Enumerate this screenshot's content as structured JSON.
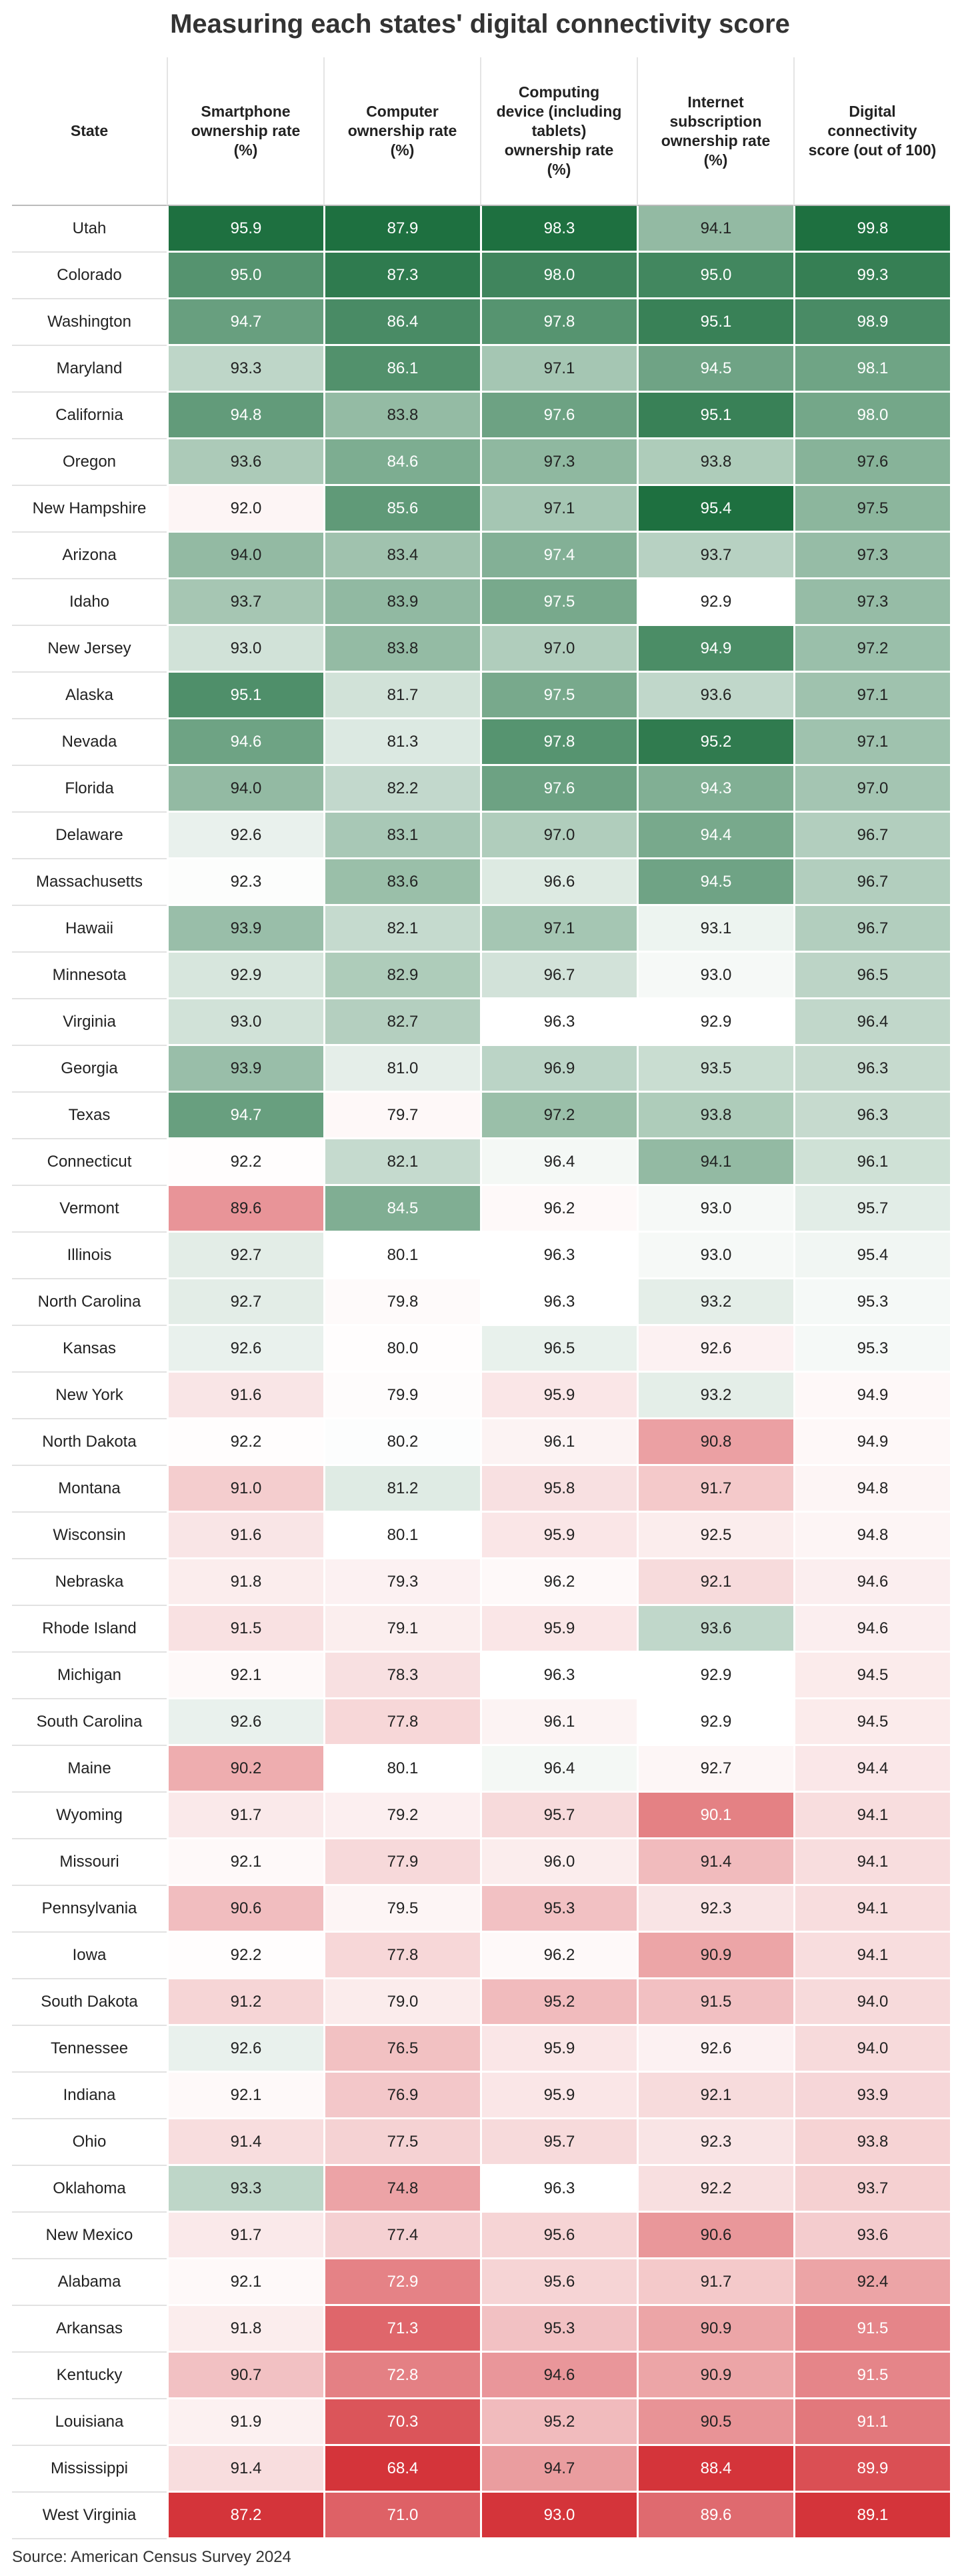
{
  "title": "Measuring each states' digital connectivity score",
  "table": {
    "columns": [
      "State",
      "Smartphone ownership rate (%)",
      "Computer ownership rate (%)",
      "Computing device (including tablets) ownership rate (%)",
      "Internet subscription ownership rate (%)",
      "Digital connectivity score (out of 100)"
    ],
    "rows": [
      [
        "Utah",
        "95.9",
        "87.9",
        "98.3",
        "94.1",
        "99.8"
      ],
      [
        "Colorado",
        "95.0",
        "87.3",
        "98.0",
        "95.0",
        "99.3"
      ],
      [
        "Washington",
        "94.7",
        "86.4",
        "97.8",
        "95.1",
        "98.9"
      ],
      [
        "Maryland",
        "93.3",
        "86.1",
        "97.1",
        "94.5",
        "98.1"
      ],
      [
        "California",
        "94.8",
        "83.8",
        "97.6",
        "95.1",
        "98.0"
      ],
      [
        "Oregon",
        "93.6",
        "84.6",
        "97.3",
        "93.8",
        "97.6"
      ],
      [
        "New Hampshire",
        "92.0",
        "85.6",
        "97.1",
        "95.4",
        "97.5"
      ],
      [
        "Arizona",
        "94.0",
        "83.4",
        "97.4",
        "93.7",
        "97.3"
      ],
      [
        "Idaho",
        "93.7",
        "83.9",
        "97.5",
        "92.9",
        "97.3"
      ],
      [
        "New Jersey",
        "93.0",
        "83.8",
        "97.0",
        "94.9",
        "97.2"
      ],
      [
        "Alaska",
        "95.1",
        "81.7",
        "97.5",
        "93.6",
        "97.1"
      ],
      [
        "Nevada",
        "94.6",
        "81.3",
        "97.8",
        "95.2",
        "97.1"
      ],
      [
        "Florida",
        "94.0",
        "82.2",
        "97.6",
        "94.3",
        "97.0"
      ],
      [
        "Delaware",
        "92.6",
        "83.1",
        "97.0",
        "94.4",
        "96.7"
      ],
      [
        "Massachusetts",
        "92.3",
        "83.6",
        "96.6",
        "94.5",
        "96.7"
      ],
      [
        "Hawaii",
        "93.9",
        "82.1",
        "97.1",
        "93.1",
        "96.7"
      ],
      [
        "Minnesota",
        "92.9",
        "82.9",
        "96.7",
        "93.0",
        "96.5"
      ],
      [
        "Virginia",
        "93.0",
        "82.7",
        "96.3",
        "92.9",
        "96.4"
      ],
      [
        "Georgia",
        "93.9",
        "81.0",
        "96.9",
        "93.5",
        "96.3"
      ],
      [
        "Texas",
        "94.7",
        "79.7",
        "97.2",
        "93.8",
        "96.3"
      ],
      [
        "Connecticut",
        "92.2",
        "82.1",
        "96.4",
        "94.1",
        "96.1"
      ],
      [
        "Vermont",
        "89.6",
        "84.5",
        "96.2",
        "93.0",
        "95.7"
      ],
      [
        "Illinois",
        "92.7",
        "80.1",
        "96.3",
        "93.0",
        "95.4"
      ],
      [
        "North Carolina",
        "92.7",
        "79.8",
        "96.3",
        "93.2",
        "95.3"
      ],
      [
        "Kansas",
        "92.6",
        "80.0",
        "96.5",
        "92.6",
        "95.3"
      ],
      [
        "New York",
        "91.6",
        "79.9",
        "95.9",
        "93.2",
        "94.9"
      ],
      [
        "North Dakota",
        "92.2",
        "80.2",
        "96.1",
        "90.8",
        "94.9"
      ],
      [
        "Montana",
        "91.0",
        "81.2",
        "95.8",
        "91.7",
        "94.8"
      ],
      [
        "Wisconsin",
        "91.6",
        "80.1",
        "95.9",
        "92.5",
        "94.8"
      ],
      [
        "Nebraska",
        "91.8",
        "79.3",
        "96.2",
        "92.1",
        "94.6"
      ],
      [
        "Rhode Island",
        "91.5",
        "79.1",
        "95.9",
        "93.6",
        "94.6"
      ],
      [
        "Michigan",
        "92.1",
        "78.3",
        "96.3",
        "92.9",
        "94.5"
      ],
      [
        "South Carolina",
        "92.6",
        "77.8",
        "96.1",
        "92.9",
        "94.5"
      ],
      [
        "Maine",
        "90.2",
        "80.1",
        "96.4",
        "92.7",
        "94.4"
      ],
      [
        "Wyoming",
        "91.7",
        "79.2",
        "95.7",
        "90.1",
        "94.1"
      ],
      [
        "Missouri",
        "92.1",
        "77.9",
        "96.0",
        "91.4",
        "94.1"
      ],
      [
        "Pennsylvania",
        "90.6",
        "79.5",
        "95.3",
        "92.3",
        "94.1"
      ],
      [
        "Iowa",
        "92.2",
        "77.8",
        "96.2",
        "90.9",
        "94.1"
      ],
      [
        "South Dakota",
        "91.2",
        "79.0",
        "95.2",
        "91.5",
        "94.0"
      ],
      [
        "Tennessee",
        "92.6",
        "76.5",
        "95.9",
        "92.6",
        "94.0"
      ],
      [
        "Indiana",
        "92.1",
        "76.9",
        "95.9",
        "92.1",
        "93.9"
      ],
      [
        "Ohio",
        "91.4",
        "77.5",
        "95.7",
        "92.3",
        "93.8"
      ],
      [
        "Oklahoma",
        "93.3",
        "74.8",
        "96.3",
        "92.2",
        "93.7"
      ],
      [
        "New Mexico",
        "91.7",
        "77.4",
        "95.6",
        "90.6",
        "93.6"
      ],
      [
        "Alabama",
        "92.1",
        "72.9",
        "95.6",
        "91.7",
        "92.4"
      ],
      [
        "Arkansas",
        "91.8",
        "71.3",
        "95.3",
        "90.9",
        "91.5"
      ],
      [
        "Kentucky",
        "90.7",
        "72.8",
        "94.6",
        "90.9",
        "91.5"
      ],
      [
        "Louisiana",
        "91.9",
        "70.3",
        "95.2",
        "90.5",
        "91.1"
      ],
      [
        "Mississippi",
        "91.4",
        "68.4",
        "94.7",
        "88.4",
        "89.9"
      ],
      [
        "West Virginia",
        "87.2",
        "71.0",
        "93.0",
        "89.6",
        "89.1"
      ]
    ]
  },
  "source": "Source: American Census Survey 2024"
}
